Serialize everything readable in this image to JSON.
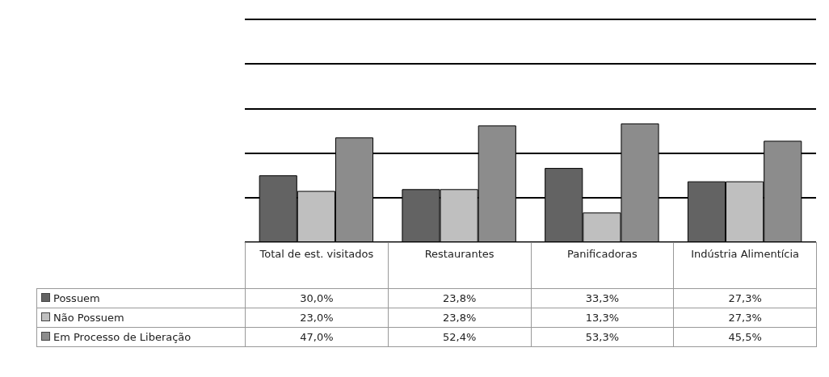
{
  "chart_data": {
    "type": "bar",
    "categories": [
      "Total de est. visitados",
      "Restaurantes",
      "Panificadoras",
      "Indústria Alimentícia"
    ],
    "series": [
      {
        "name": "Possuem",
        "color": "#636363",
        "values": [
          30.0,
          23.8,
          33.3,
          27.3
        ],
        "value_labels": [
          "30,0%",
          "23,8%",
          "33,3%",
          "27,3%"
        ]
      },
      {
        "name": "Não Possuem",
        "color": "#bfbfbf",
        "values": [
          23.0,
          23.8,
          13.3,
          27.3
        ],
        "value_labels": [
          "23,0%",
          "23,8%",
          "13,3%",
          "27,3%"
        ]
      },
      {
        "name": "Em Processo de Liberação",
        "color": "#8c8c8c",
        "values": [
          47.0,
          52.4,
          53.3,
          45.5
        ],
        "value_labels": [
          "47,0%",
          "52,4%",
          "53,3%",
          "45,5%"
        ]
      }
    ],
    "ylim": [
      0,
      100
    ],
    "grid": "y",
    "legend": "bottom",
    "tick_labels": false
  }
}
